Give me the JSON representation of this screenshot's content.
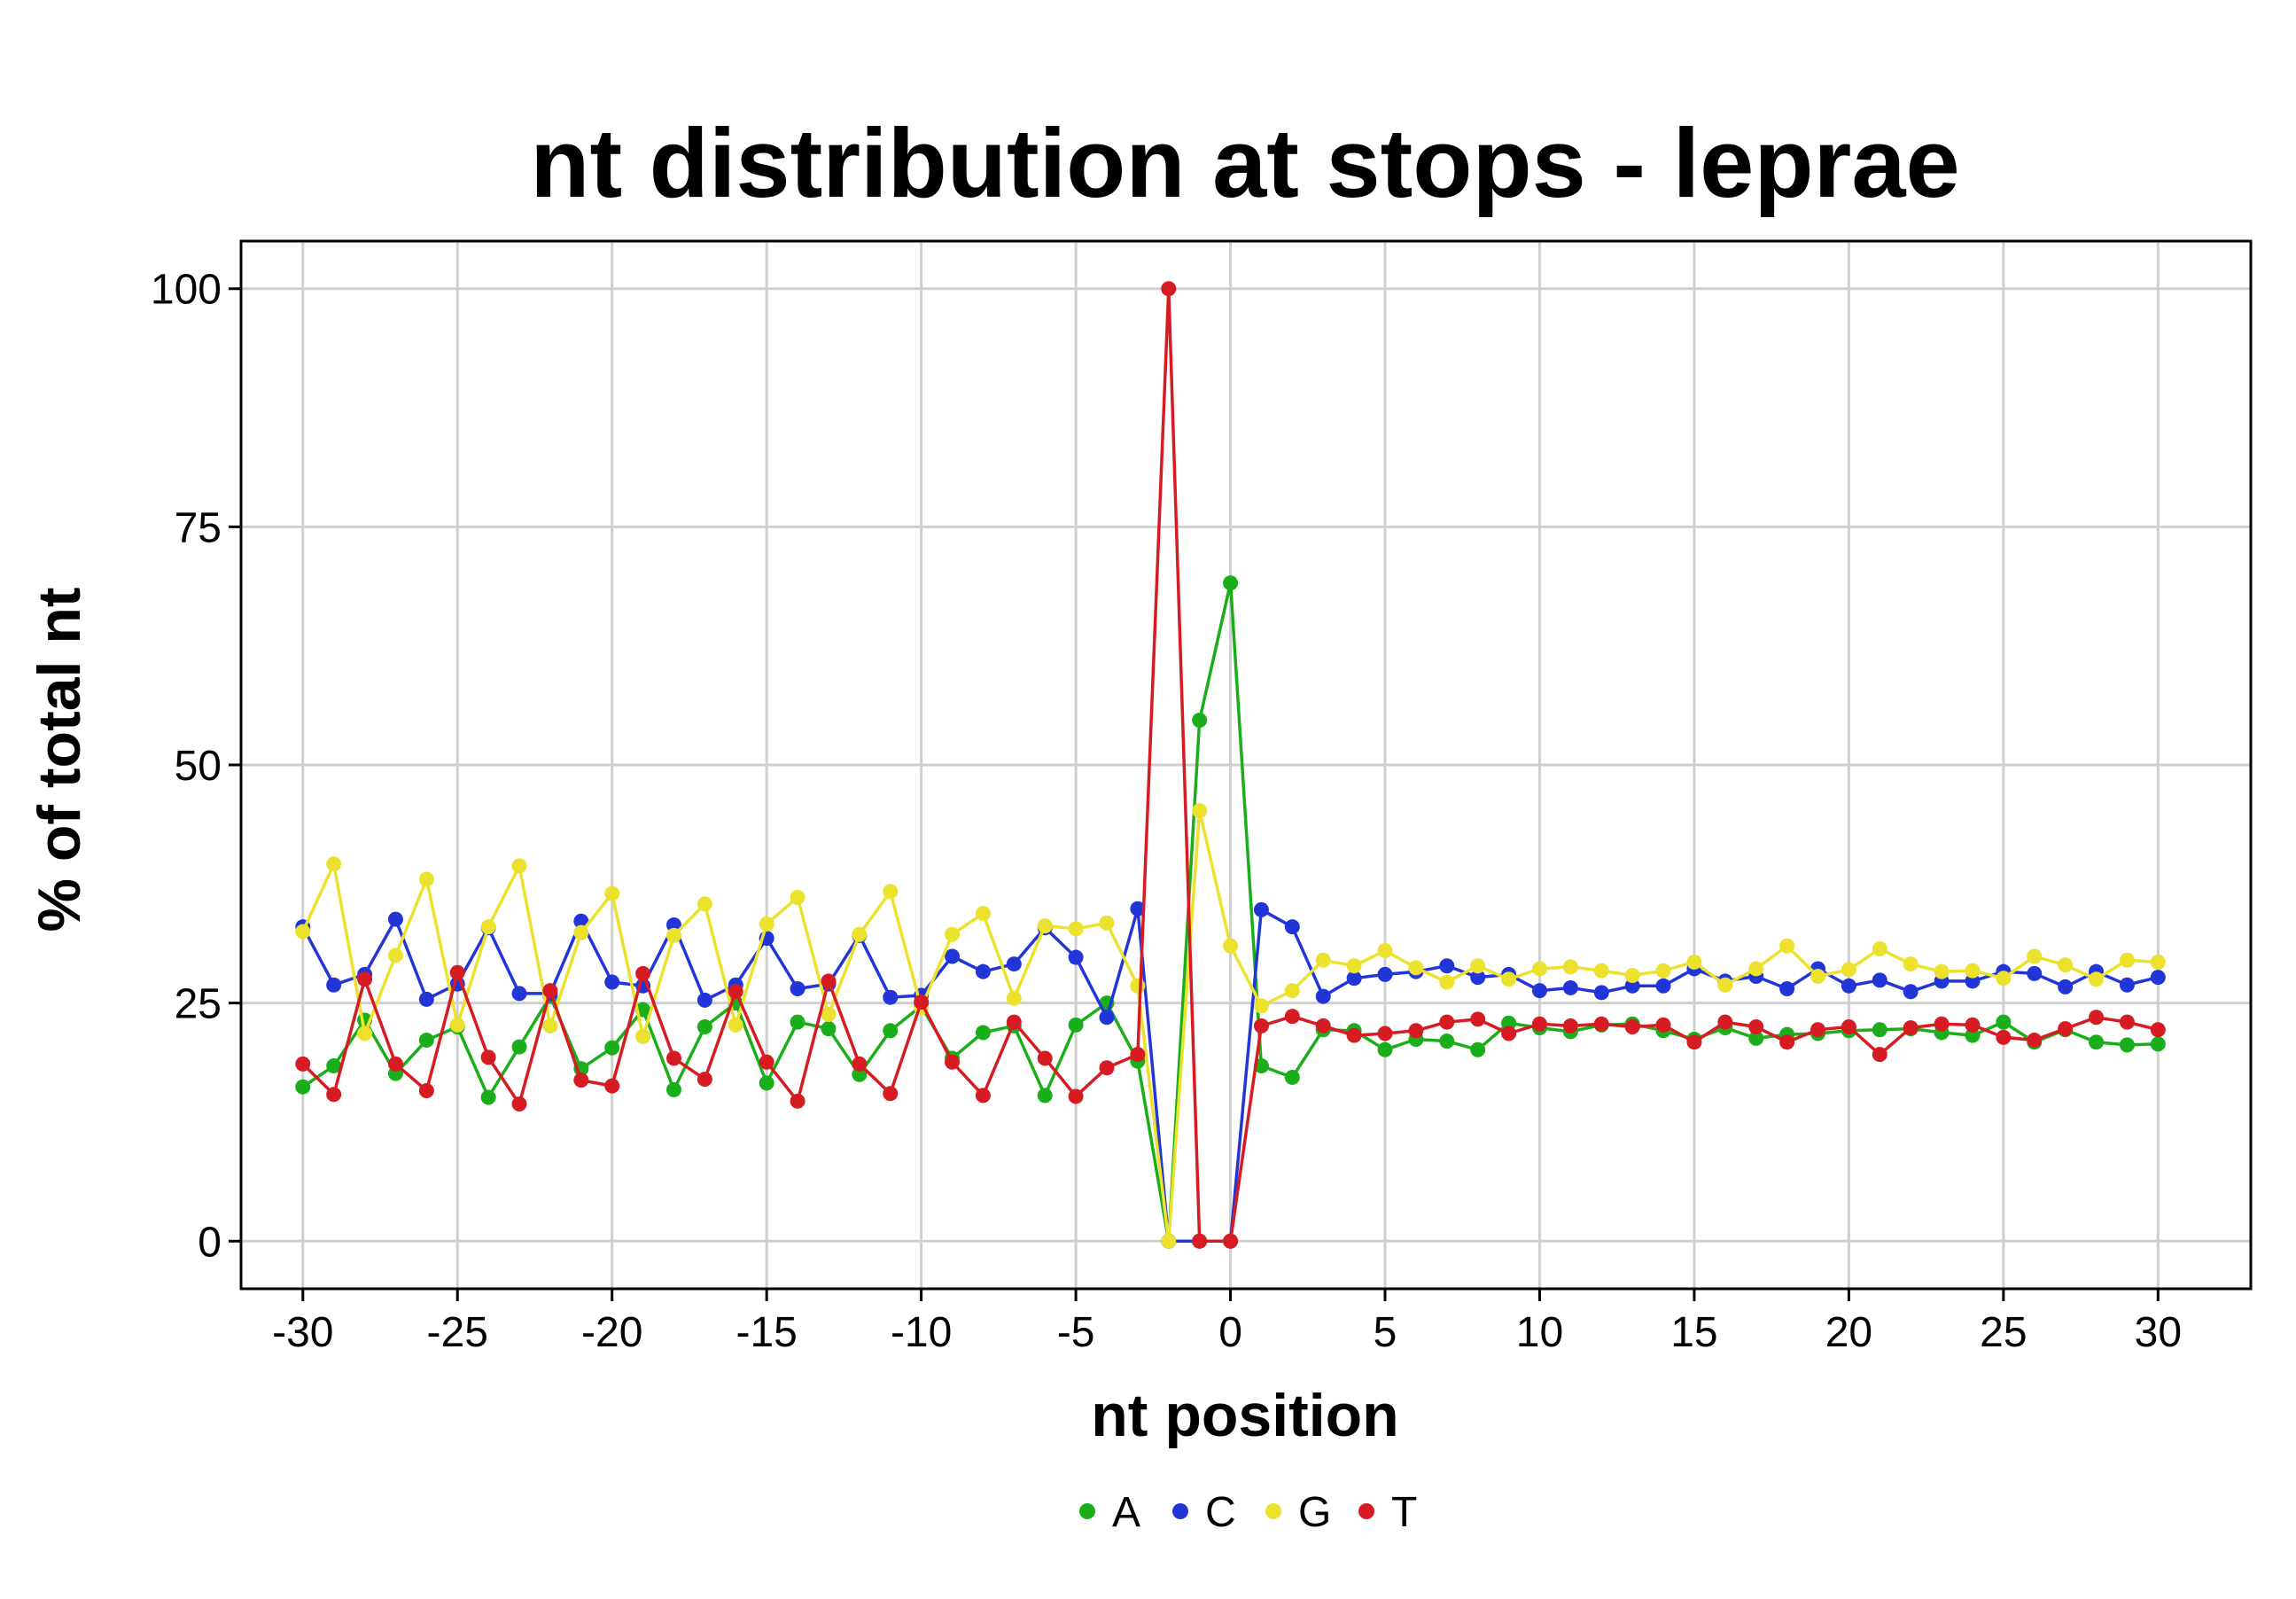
{
  "chart_data": {
    "type": "line",
    "title": "nt distribution at stops - leprae",
    "xlabel": "nt position",
    "ylabel": "% of total nt",
    "xlim": [
      -32,
      33
    ],
    "ylim": [
      -5,
      105
    ],
    "xticks": [
      -30,
      -25,
      -20,
      -15,
      -10,
      -5,
      0,
      5,
      10,
      15,
      20,
      25,
      30
    ],
    "yticks": [
      0,
      25,
      50,
      75,
      100
    ],
    "xtick_labels": [
      "-30",
      "-25",
      "-20",
      "-15",
      "-10",
      "-5",
      "0",
      "5",
      "10",
      "15",
      "20",
      "25",
      "30"
    ],
    "ytick_labels": [
      "0",
      "25",
      "50",
      "75",
      "100"
    ],
    "grid": true,
    "legend_position": "bottom",
    "x": [
      -30,
      -29,
      -28,
      -27,
      -26,
      -25,
      -24,
      -23,
      -22,
      -21,
      -20,
      -19,
      -18,
      -17,
      -16,
      -15,
      -14,
      -13,
      -12,
      -11,
      -10,
      -9,
      -8,
      -7,
      -6,
      -5,
      -4,
      -3,
      -2,
      -1,
      0,
      1,
      2,
      3,
      4,
      5,
      6,
      7,
      8,
      9,
      10,
      11,
      12,
      13,
      14,
      15,
      16,
      17,
      18,
      19,
      20,
      21,
      22,
      23,
      24,
      25,
      26,
      27,
      28,
      29,
      30
    ],
    "series": [
      {
        "name": "A",
        "color": "#1aae1a",
        "values": [
          16.2,
          18.4,
          23.2,
          17.6,
          21.1,
          22.5,
          15.1,
          20.4,
          25.7,
          18.1,
          20.3,
          24.3,
          15.9,
          22.5,
          25.0,
          16.6,
          23.0,
          22.3,
          17.5,
          22.1,
          24.7,
          19.2,
          21.9,
          22.6,
          15.3,
          22.7,
          25.0,
          18.9,
          0,
          54.7,
          69.1,
          18.4,
          17.2,
          22.2,
          22.1,
          20.1,
          21.2,
          21.0,
          20.1,
          22.9,
          22.4,
          22.0,
          22.7,
          22.8,
          22.1,
          21.2,
          22.4,
          21.3,
          21.7,
          21.8,
          22.1,
          22.2,
          22.3,
          21.9,
          21.6,
          23.0,
          20.9,
          22.2,
          20.9,
          20.6,
          20.7
        ]
      },
      {
        "name": "C",
        "color": "#2236d8",
        "values": [
          33.0,
          26.9,
          28.0,
          33.8,
          25.4,
          27.0,
          32.9,
          26.0,
          26.0,
          33.6,
          27.2,
          26.8,
          33.2,
          25.3,
          26.9,
          31.8,
          26.5,
          27.0,
          32.1,
          25.6,
          25.8,
          29.9,
          28.3,
          29.1,
          32.9,
          29.8,
          23.5,
          34.9,
          0,
          0,
          0,
          34.8,
          33.0,
          25.7,
          27.6,
          28.0,
          28.3,
          28.9,
          27.7,
          28.0,
          26.3,
          26.6,
          26.1,
          26.8,
          26.8,
          28.6,
          27.3,
          27.8,
          26.5,
          28.6,
          26.8,
          27.4,
          26.2,
          27.3,
          27.3,
          28.3,
          28.1,
          26.7,
          28.3,
          26.9,
          27.7
        ]
      },
      {
        "name": "G",
        "color": "#ece12d",
        "values": [
          32.5,
          39.6,
          21.8,
          30.0,
          38.0,
          22.7,
          33.0,
          39.4,
          22.6,
          32.4,
          36.5,
          21.5,
          32.1,
          35.4,
          22.7,
          33.3,
          36.1,
          23.8,
          32.2,
          36.7,
          24.5,
          32.2,
          34.4,
          25.5,
          33.1,
          32.8,
          33.4,
          26.8,
          0,
          45.2,
          31.0,
          24.7,
          26.3,
          29.5,
          28.9,
          30.5,
          28.7,
          27.2,
          28.9,
          27.5,
          28.6,
          28.8,
          28.4,
          27.9,
          28.4,
          29.3,
          26.9,
          28.6,
          31.0,
          27.8,
          28.5,
          30.7,
          29.1,
          28.3,
          28.4,
          27.6,
          29.9,
          29.0,
          27.5,
          29.5,
          29.3
        ]
      },
      {
        "name": "T",
        "color": "#d61c22",
        "values": [
          18.6,
          15.4,
          27.5,
          18.6,
          15.8,
          28.2,
          19.3,
          14.4,
          26.3,
          16.9,
          16.3,
          28.1,
          19.2,
          17.0,
          26.2,
          18.8,
          14.7,
          27.3,
          18.6,
          15.5,
          25.1,
          18.8,
          15.3,
          23.0,
          19.2,
          15.2,
          18.2,
          19.6,
          100,
          0,
          0,
          22.6,
          23.6,
          22.6,
          21.6,
          21.8,
          22.1,
          23.0,
          23.3,
          21.8,
          22.8,
          22.6,
          22.8,
          22.5,
          22.7,
          20.9,
          23.0,
          22.5,
          20.9,
          22.2,
          22.5,
          19.6,
          22.4,
          22.8,
          22.7,
          21.4,
          21.1,
          22.3,
          23.5,
          23.0,
          22.2
        ]
      }
    ]
  }
}
